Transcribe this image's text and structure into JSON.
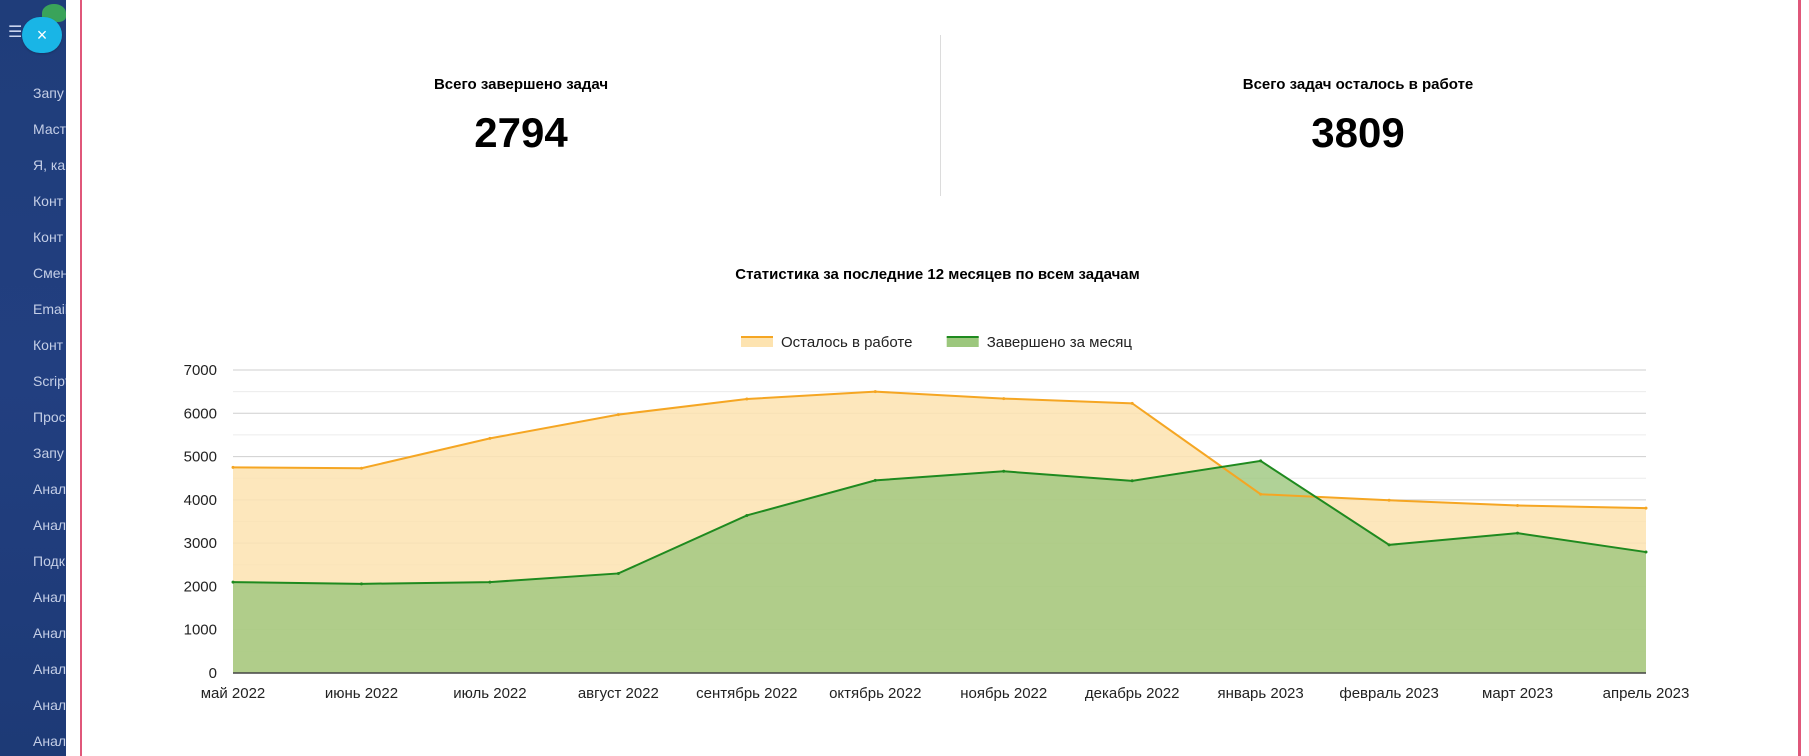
{
  "sidebar": {
    "items": [
      "Запу",
      "Маст",
      "Я, ка",
      "Конт",
      "Конт",
      "Смен",
      "Email",
      "Конт",
      "Script",
      "Прос",
      "Запу",
      "Анал",
      "Анал",
      "Подк",
      "Анал",
      "Анал",
      "Анал",
      "Анал",
      "Анал"
    ]
  },
  "close_button": {
    "label": "×"
  },
  "stats": {
    "completed": {
      "label": "Всего завершено задач",
      "value": "2794"
    },
    "remaining": {
      "label": "Всего задач осталось в работе",
      "value": "3809"
    }
  },
  "chart_data": {
    "type": "area",
    "title": "Статистика за последние 12 месяцев по всем задачам",
    "legend_position": "top",
    "ylim": [
      0,
      7000
    ],
    "yticks": [
      0,
      1000,
      2000,
      3000,
      4000,
      5000,
      6000,
      7000
    ],
    "grid": true,
    "x": [
      "май 2022",
      "июнь 2022",
      "июль 2022",
      "август 2022",
      "сентябрь 2022",
      "октябрь 2022",
      "ноябрь 2022",
      "декабрь 2022",
      "январь 2023",
      "февраль 2023",
      "март 2023",
      "апрель 2023"
    ],
    "series": [
      {
        "name": "Осталось в работе",
        "color": "#f5a623",
        "fill": "#fde3b0",
        "values": [
          4750,
          4730,
          5420,
          5970,
          6330,
          6500,
          6340,
          6230,
          4130,
          3990,
          3870,
          3809
        ]
      },
      {
        "name": "Завершено за месяц",
        "color": "#1f8a1f",
        "fill": "#9cc77d",
        "values": [
          2100,
          2060,
          2100,
          2300,
          3640,
          4450,
          4660,
          4440,
          4900,
          2960,
          3230,
          2794
        ]
      }
    ]
  }
}
